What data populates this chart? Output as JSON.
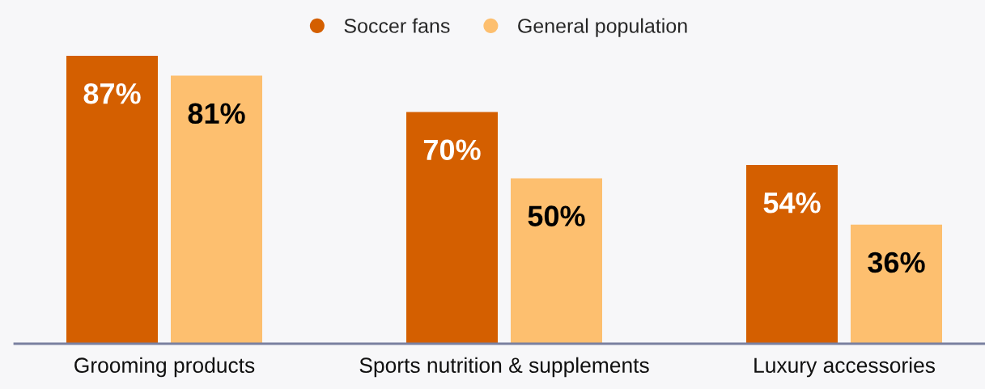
{
  "chart_data": {
    "type": "bar",
    "categories": [
      "Grooming products",
      "Sports nutrition & supplements",
      "Luxury accessories"
    ],
    "series": [
      {
        "name": "Soccer fans",
        "color": "#d45f00",
        "values": [
          87,
          70,
          54
        ],
        "value_labels": [
          "87%",
          "70%",
          "54%"
        ]
      },
      {
        "name": "General population",
        "color": "#fdbf6f",
        "values": [
          81,
          50,
          36
        ],
        "value_labels": [
          "81%",
          "50%",
          "36%"
        ]
      }
    ],
    "legend": "top"
  }
}
